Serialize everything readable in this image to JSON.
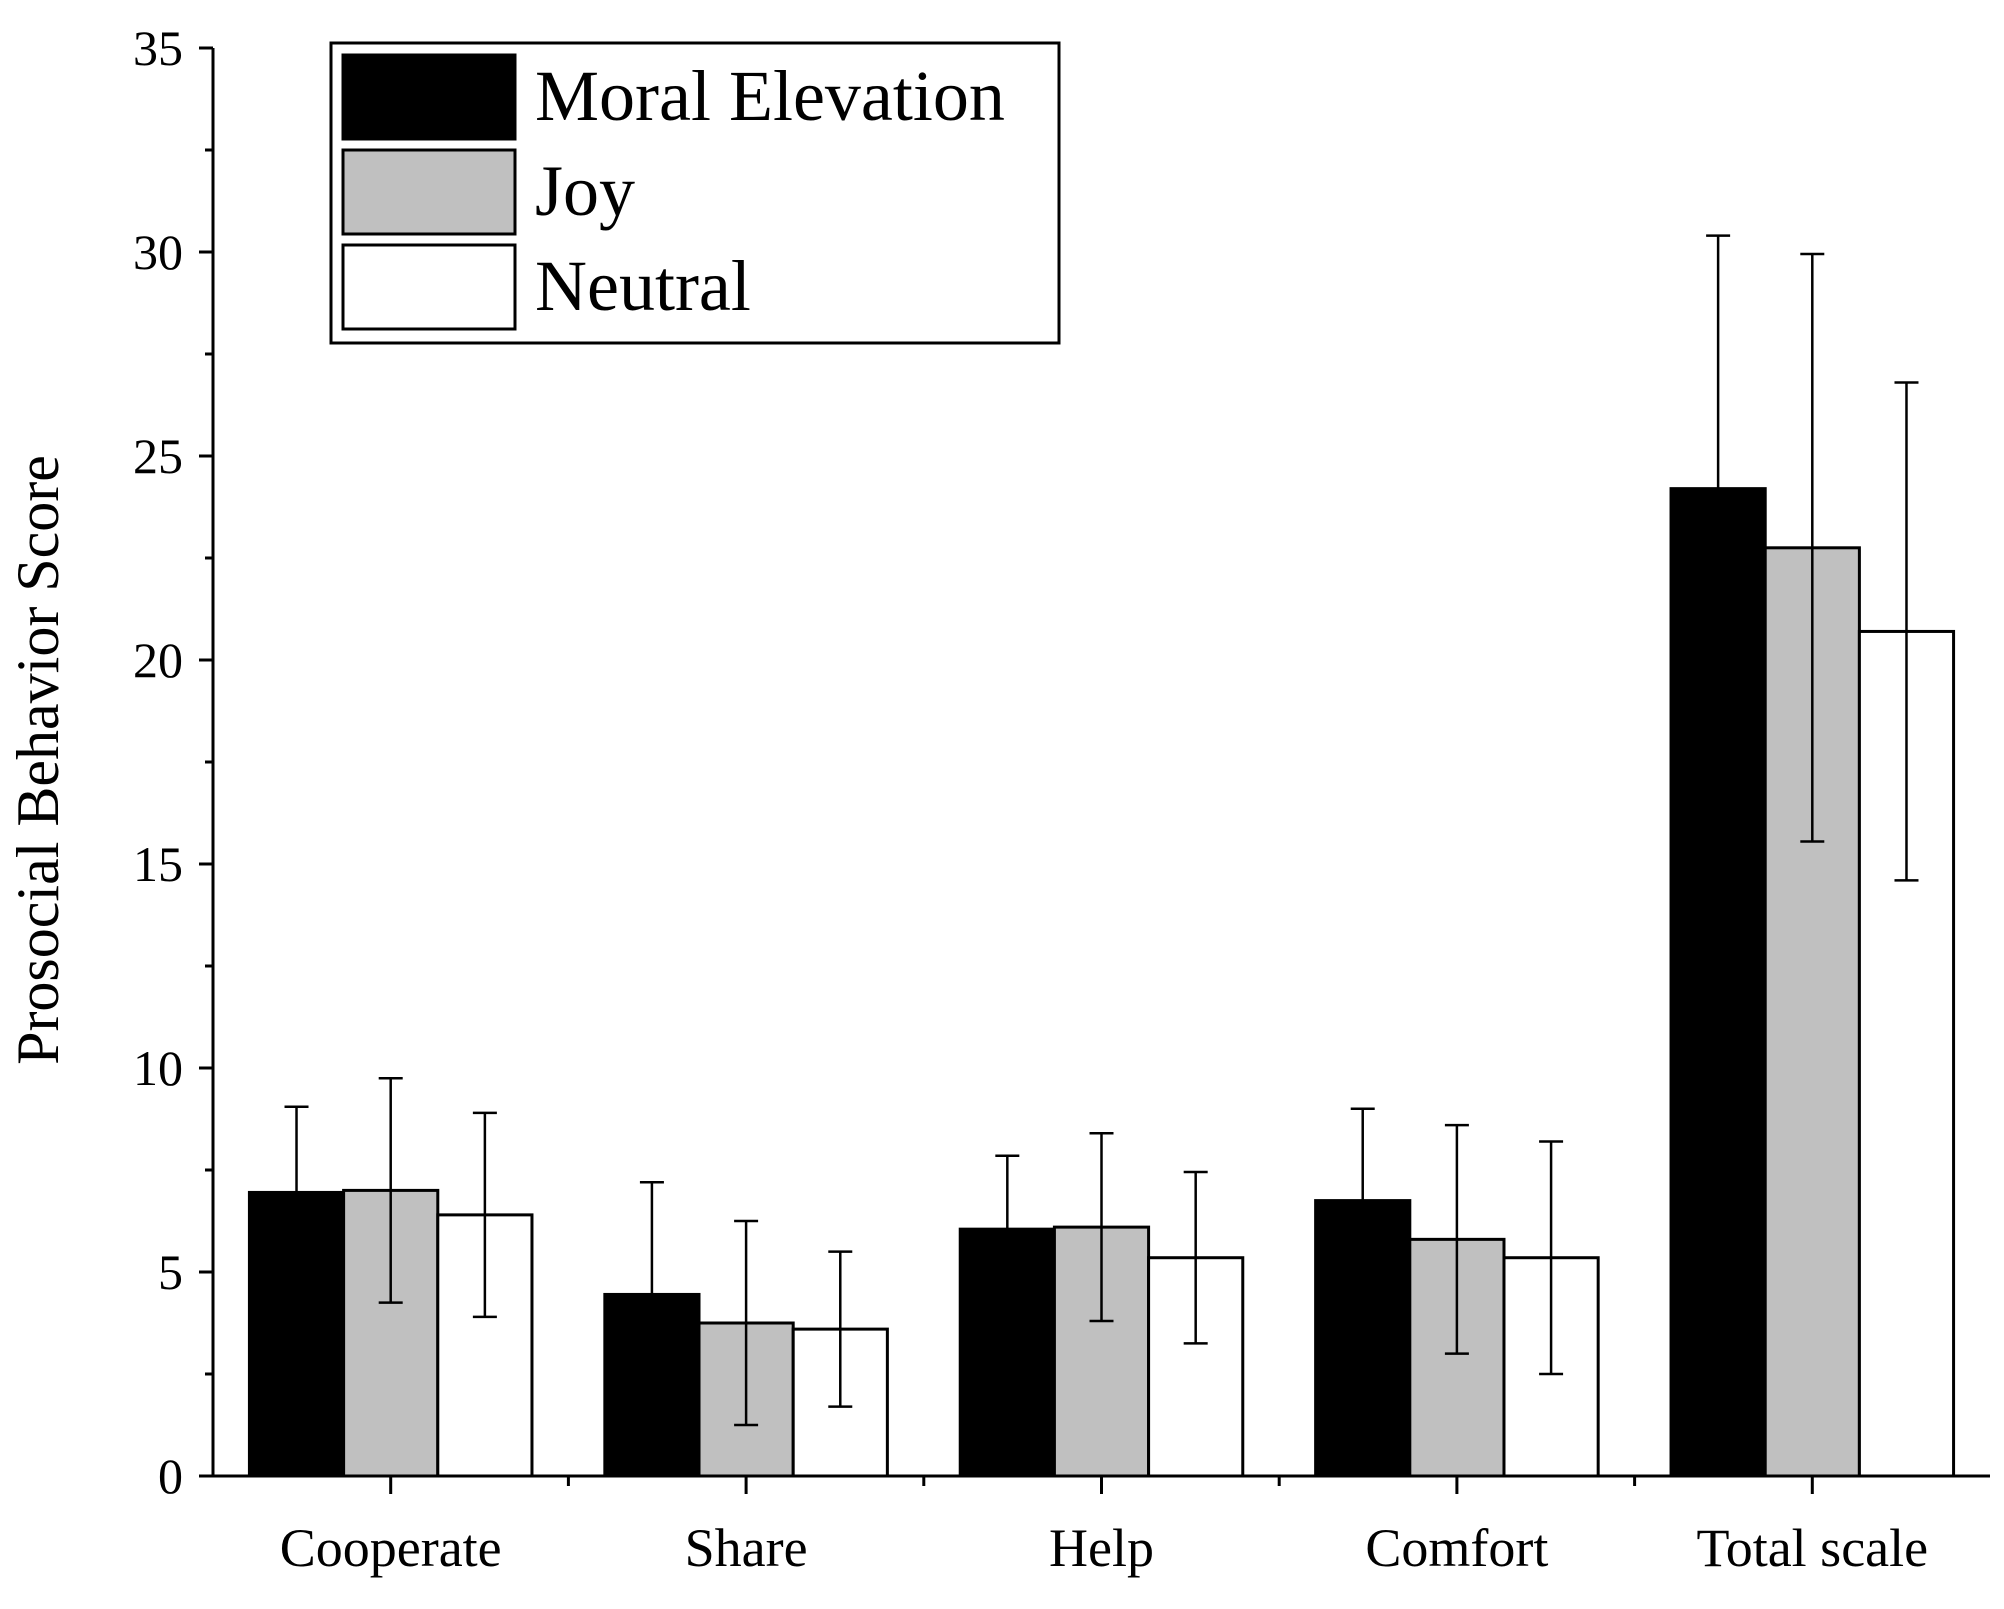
{
  "chart_data": {
    "type": "bar",
    "title": "",
    "xlabel": "",
    "ylabel": "Prosocial Behavior Score",
    "ylim": [
      0,
      35
    ],
    "yticks": [
      "0",
      "5",
      "10",
      "15",
      "20",
      "25",
      "30",
      "35"
    ],
    "ytick_values": [
      0,
      5,
      10,
      15,
      20,
      25,
      30,
      35
    ],
    "grid": false,
    "legend_position": "top-left",
    "categories": [
      "Cooperate",
      "Share",
      "Help",
      "Comfort",
      "Total scale"
    ],
    "series": [
      {
        "name": "Moral Elevation",
        "color": "#000000",
        "values": [
          6.95,
          4.45,
          6.05,
          6.75,
          24.2
        ],
        "errors": [
          2.1,
          2.75,
          1.8,
          2.25,
          6.2
        ]
      },
      {
        "name": "Joy",
        "color": "#c0c0c0",
        "values": [
          7.0,
          3.75,
          6.1,
          5.8,
          22.75
        ],
        "errors": [
          2.75,
          2.5,
          2.3,
          2.8,
          7.2
        ]
      },
      {
        "name": "Neutral",
        "color": "#ffffff",
        "values": [
          6.4,
          3.6,
          5.35,
          5.35,
          20.7
        ],
        "errors": [
          2.5,
          1.9,
          2.1,
          2.85,
          6.1
        ]
      }
    ]
  }
}
